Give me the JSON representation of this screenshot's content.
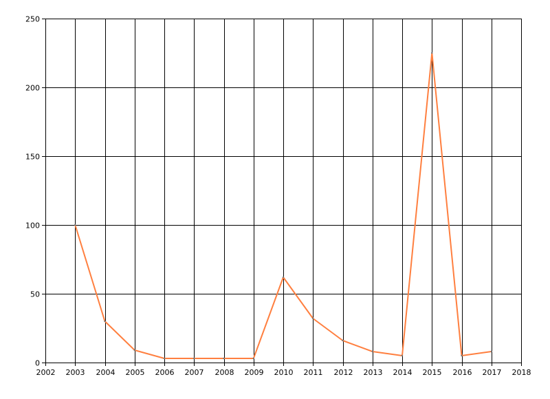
{
  "chart_data": {
    "type": "line",
    "title": "",
    "xlabel": "",
    "ylabel": "",
    "xlim": [
      2002,
      2018
    ],
    "ylim": [
      0,
      250
    ],
    "x_ticks": [
      2002,
      2003,
      2004,
      2005,
      2006,
      2007,
      2008,
      2009,
      2010,
      2011,
      2012,
      2013,
      2014,
      2015,
      2016,
      2017,
      2018
    ],
    "y_ticks": [
      0,
      50,
      100,
      150,
      200,
      250
    ],
    "grid": true,
    "legend": "none",
    "series": [
      {
        "color": "#ff7f3f",
        "x": [
          2003,
          2004,
          2005,
          2006,
          2007,
          2008,
          2009,
          2010,
          2011,
          2012,
          2013,
          2014,
          2015,
          2016,
          2017
        ],
        "y": [
          100,
          30,
          9,
          3,
          3,
          3,
          3,
          62,
          32,
          16,
          8,
          5,
          225,
          5,
          8
        ]
      }
    ]
  }
}
